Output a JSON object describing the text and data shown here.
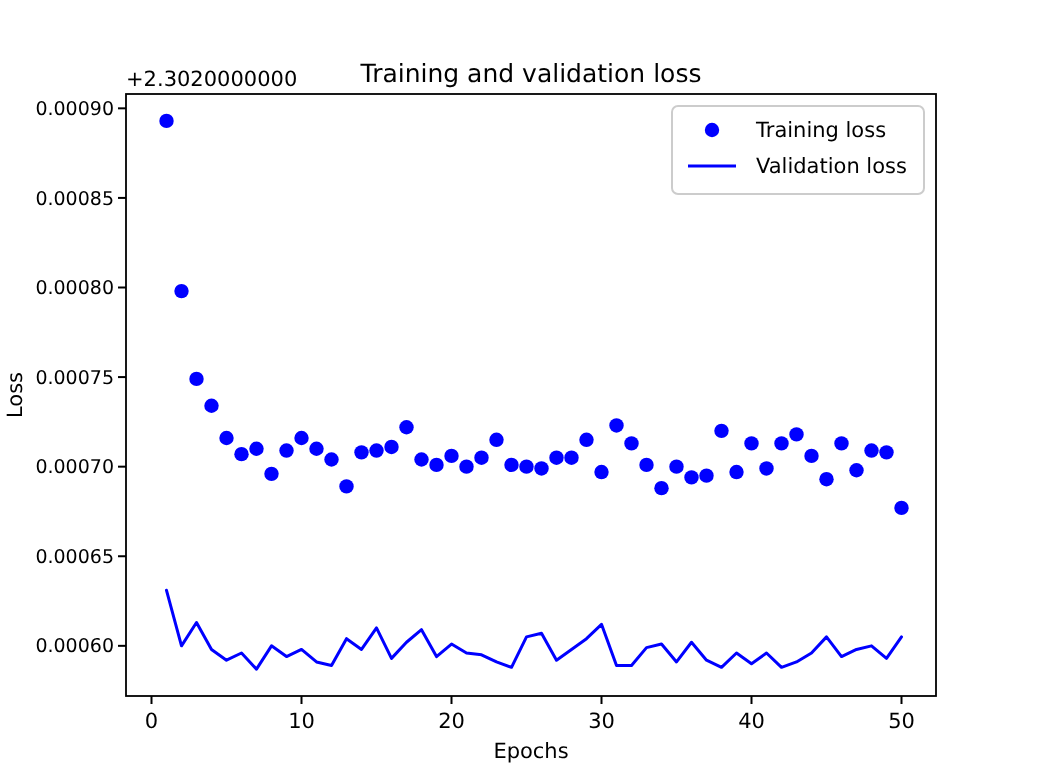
{
  "chart_data": {
    "type": "line",
    "title": "Training and validation loss",
    "xlabel": "Epochs",
    "ylabel": "Loss",
    "annotations": [
      "+2.3020000000"
    ],
    "x": [
      1,
      2,
      3,
      4,
      5,
      6,
      7,
      8,
      9,
      10,
      11,
      12,
      13,
      14,
      15,
      16,
      17,
      18,
      19,
      20,
      21,
      22,
      23,
      24,
      25,
      26,
      27,
      28,
      29,
      30,
      31,
      32,
      33,
      34,
      35,
      36,
      37,
      38,
      39,
      40,
      41,
      42,
      43,
      44,
      45,
      46,
      47,
      48,
      49,
      50
    ],
    "series": [
      {
        "name": "Training loss",
        "type": "scatter",
        "marker": "circle",
        "color": "#0000ff",
        "values": [
          0.000893,
          0.000798,
          0.000749,
          0.000734,
          0.000716,
          0.000707,
          0.00071,
          0.000696,
          0.000709,
          0.000716,
          0.00071,
          0.000704,
          0.000689,
          0.000708,
          0.000709,
          0.000711,
          0.000722,
          0.000704,
          0.000701,
          0.000706,
          0.0007,
          0.000705,
          0.000715,
          0.000701,
          0.0007,
          0.000699,
          0.000705,
          0.000705,
          0.000715,
          0.000697,
          0.000723,
          0.000713,
          0.000701,
          0.000688,
          0.0007,
          0.000694,
          0.000695,
          0.00072,
          0.000697,
          0.000713,
          0.000699,
          0.000713,
          0.000718,
          0.000706,
          0.000693,
          0.000713,
          0.000698,
          0.000709,
          0.000708,
          0.000677
        ]
      },
      {
        "name": "Validation loss",
        "color": "#0000ff",
        "line_style": "solid",
        "values": [
          0.000631,
          0.0006,
          0.000613,
          0.000598,
          0.000592,
          0.000596,
          0.000587,
          0.0006,
          0.000594,
          0.000598,
          0.000591,
          0.000589,
          0.000604,
          0.000598,
          0.00061,
          0.000593,
          0.000602,
          0.000609,
          0.000594,
          0.000601,
          0.000596,
          0.000595,
          0.000591,
          0.000588,
          0.000605,
          0.000607,
          0.000592,
          0.000598,
          0.000604,
          0.000612,
          0.000589,
          0.000589,
          0.000599,
          0.000601,
          0.000591,
          0.000602,
          0.000592,
          0.000588,
          0.000596,
          0.00059,
          0.000596,
          0.000588,
          0.000591,
          0.000596,
          0.000605,
          0.000594,
          0.000598,
          0.0006,
          0.000593,
          0.000605
        ]
      }
    ],
    "xlim": [
      -1.7,
      52.3
    ],
    "xticks": [
      0,
      10,
      20,
      30,
      40,
      50
    ],
    "ylim": [
      0.000572,
      0.000908
    ],
    "yticks": [
      {
        "value": 0.0006,
        "label": "0.00060"
      },
      {
        "value": 0.00065,
        "label": "0.00065"
      },
      {
        "value": 0.0007,
        "label": "0.00070"
      },
      {
        "value": 0.00075,
        "label": "0.00075"
      },
      {
        "value": 0.0008,
        "label": "0.00080"
      },
      {
        "value": 0.00085,
        "label": "0.00085"
      },
      {
        "value": 0.0009,
        "label": "0.00090"
      }
    ],
    "legend": "top right",
    "grid": false
  }
}
